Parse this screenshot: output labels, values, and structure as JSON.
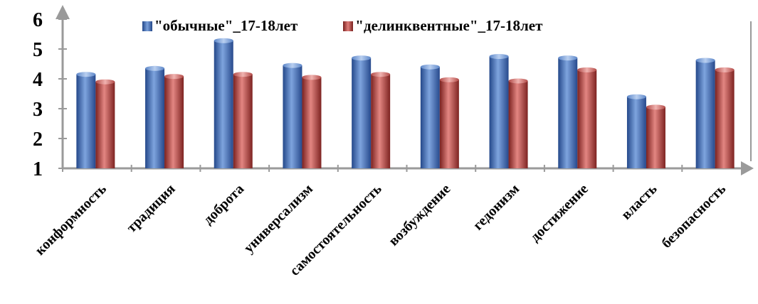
{
  "chart_data": {
    "type": "bar",
    "title": "",
    "xlabel": "",
    "ylabel": "",
    "categories": [
      "конформность",
      "традиция",
      "доброта",
      "универсализм",
      "самостоятельность",
      "возбуждение",
      "гедонизм",
      "достижение",
      "власть",
      "безопасность"
    ],
    "series": [
      {
        "name": "\"обычные\"_17-18лет",
        "values": [
          4.15,
          4.35,
          5.28,
          4.45,
          4.7,
          4.4,
          4.75,
          4.7,
          3.4,
          4.62
        ]
      },
      {
        "name": "\"делинквентные\"_17-18лет",
        "values": [
          3.9,
          4.08,
          4.15,
          4.05,
          4.15,
          3.97,
          3.93,
          4.3,
          3.05,
          4.3
        ]
      }
    ],
    "ylim": [
      1,
      6
    ],
    "yticks": [
      1,
      2,
      3,
      4,
      5,
      6
    ],
    "grid": false,
    "legend_position": "top",
    "colors": [
      "#4a74b8",
      "#c0504d"
    ]
  }
}
